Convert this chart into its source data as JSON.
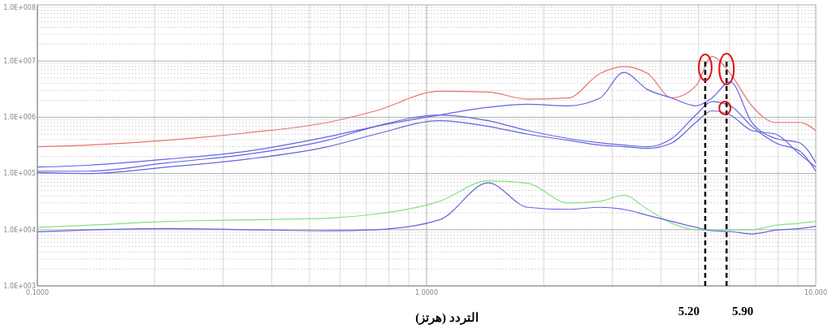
{
  "chart_data": {
    "type": "line",
    "xlabel": "التردد (هرتز)",
    "log": "xy",
    "grid": true,
    "marker": "none",
    "line_style": "solid",
    "x": [
      0.1,
      0.135,
      0.216,
      0.347,
      0.557,
      0.74,
      1.08,
      1.44,
      1.82,
      2.31,
      2.79,
      3.21,
      3.7,
      4.27,
      4.92,
      5.41,
      6.03,
      6.85,
      7.89,
      9.1,
      10
    ],
    "xlim": [
      0.1,
      10
    ],
    "xticks": [
      {
        "value": 0.1,
        "label": "0.1000"
      },
      {
        "value": 1,
        "label": "1.0000"
      },
      {
        "value": 10,
        "label": "10.000"
      }
    ],
    "ylim": [
      1000,
      100000000
    ],
    "yticks": [
      {
        "value": 1000,
        "label": "1.0E+003"
      },
      {
        "value": 10000,
        "label": "1.0E+004"
      },
      {
        "value": 100000,
        "label": "1.0E+005"
      },
      {
        "value": 1000000,
        "label": "1.0E+006"
      },
      {
        "value": 10000000,
        "label": "1.0E+007"
      },
      {
        "value": 100000000,
        "label": "1.0E+008"
      }
    ],
    "series": [
      {
        "color": "#e87272",
        "values": [
          300000,
          320000,
          390000,
          530000,
          810000,
          1300000,
          2900000,
          2800000,
          2100000,
          2200000,
          6000000,
          8000000,
          6000000,
          2200000,
          3600000,
          12000000,
          6000000,
          1600000,
          810000,
          810000,
          580000
        ]
      },
      {
        "color": "#6464e0",
        "values": [
          130000,
          140000,
          180000,
          250000,
          450000,
          690000,
          1100000,
          1500000,
          1700000,
          1600000,
          2200000,
          6300000,
          3100000,
          2200000,
          1600000,
          2200000,
          4300000,
          810000,
          420000,
          350000,
          155000
        ]
      },
      {
        "color": "#6464e0",
        "values": [
          110000,
          110000,
          155000,
          220000,
          390000,
          690000,
          1100000,
          870000,
          580000,
          420000,
          350000,
          320000,
          300000,
          420000,
          1100000,
          1900000,
          1600000,
          690000,
          350000,
          250000,
          110000
        ]
      },
      {
        "color": "#6464e0",
        "values": [
          104000,
          100000,
          130000,
          180000,
          300000,
          500000,
          870000,
          690000,
          500000,
          390000,
          320000,
          300000,
          280000,
          350000,
          810000,
          1300000,
          1100000,
          580000,
          500000,
          220000,
          130000
        ]
      },
      {
        "color": "#86e086",
        "values": [
          11000,
          12000,
          14000,
          15000,
          16000,
          19000,
          32000,
          74000,
          67000,
          30000,
          32000,
          41000,
          23000,
          13000,
          10000,
          9900,
          10000,
          10000,
          12000,
          13000,
          14000
        ]
      },
      {
        "color": "#6464e0",
        "values": [
          9200,
          9900,
          10500,
          10000,
          9600,
          10000,
          15000,
          68000,
          25000,
          23000,
          25000,
          23000,
          18000,
          14000,
          11000,
          9600,
          9300,
          8400,
          9800,
          10500,
          11500
        ]
      }
    ],
    "ref_lines": [
      {
        "axis": "x",
        "value": 5.2,
        "label": "5.20",
        "color": "#000000",
        "line_style": "dashed"
      },
      {
        "axis": "x",
        "value": 5.9,
        "label": "5.90",
        "color": "#000000",
        "line_style": "dashed"
      }
    ]
  }
}
